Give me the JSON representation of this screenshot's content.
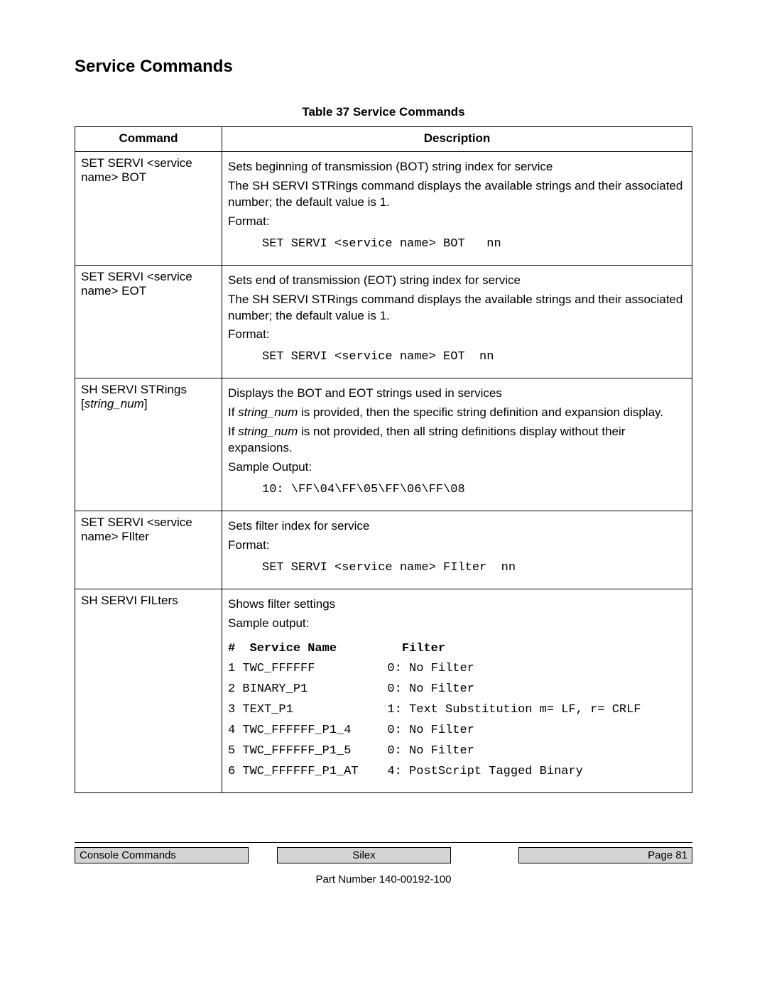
{
  "section_title": "Service Commands",
  "table_caption": "Table 37  Service Commands",
  "header": {
    "col1": "Command",
    "col2": "Description"
  },
  "rows": [
    {
      "command": "SET SERVI <service name> BOT",
      "desc_lines": [
        "Sets beginning of transmission (BOT) string index for service",
        "The SH SERVI STRings command displays the available strings and their associated number; the default value is 1.",
        "Format:"
      ],
      "mono": "SET SERVI <service name> BOT   nn"
    },
    {
      "command": "SET SERVI <service name> EOT",
      "desc_lines": [
        "Sets end of transmission (EOT) string index for service",
        "The SH SERVI STRings command displays the available strings and their associated number; the default value is 1.",
        "Format:"
      ],
      "mono": "SET SERVI <service name> EOT  nn"
    },
    {
      "command_html": "SH SERVI STRings [<i>string_num</i>]",
      "desc_rich": [
        {
          "plain": "Displays the BOT and EOT strings used in services"
        },
        {
          "prefix": "If ",
          "italic": "string_num",
          "suffix": " is provided, then the specific string definition and expansion display."
        },
        {
          "prefix": "If ",
          "italic": "string_num",
          "suffix": " is not provided, then all string definitions display without their expansions."
        },
        {
          "plain": "Sample Output:"
        }
      ],
      "mono": "10: \\FF\\04\\FF\\05\\FF\\06\\FF\\08"
    },
    {
      "command": "SET SERVI <service name> FIlter",
      "desc_lines": [
        "Sets filter index for service",
        "Format:"
      ],
      "mono": "SET SERVI <service name> FIlter  nn"
    },
    {
      "command": "SH SERVI FILters",
      "desc_lines": [
        "Shows filter settings",
        "Sample output:"
      ],
      "filter_header": "#  Service Name         Filter",
      "filter_rows": [
        "1 TWC_FFFFFF          0: No Filter",
        "2 BINARY_P1           0: No Filter",
        "3 TEXT_P1             1: Text Substitution m= LF, r= CRLF",
        "4 TWC_FFFFFF_P1_4     0: No Filter",
        "5 TWC_FFFFFF_P1_5     0: No Filter",
        "6 TWC_FFFFFF_P1_AT    4: PostScript Tagged Binary"
      ]
    }
  ],
  "footer": {
    "left": "Console Commands",
    "mid": "Silex",
    "right": "Page 81",
    "partnum": "Part Number 140-00192-100"
  }
}
